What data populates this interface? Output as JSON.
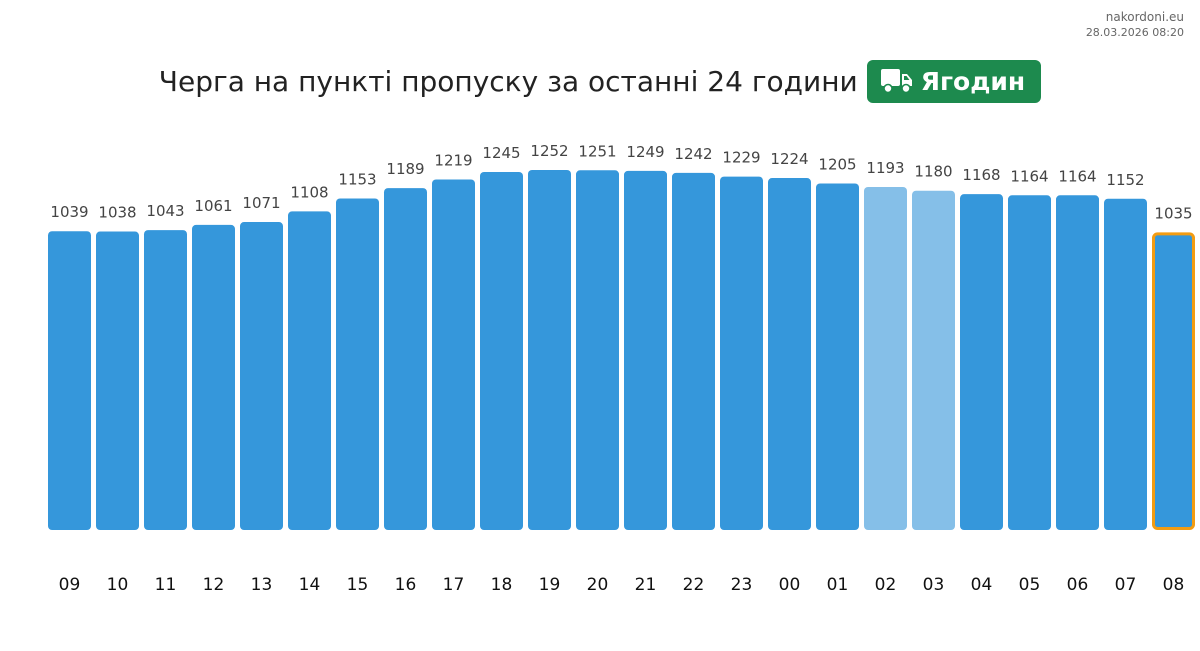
{
  "source": {
    "site": "nakordoni.eu",
    "timestamp": "28.03.2026 08:20"
  },
  "header": {
    "title": "Черга на пункті пропуску за останні 24 години",
    "checkpoint": "Ягодин",
    "badge_icon": "truck-icon",
    "badge_color": "#1d8a4e"
  },
  "chart_data": {
    "type": "bar",
    "categories": [
      "09",
      "10",
      "11",
      "12",
      "13",
      "14",
      "15",
      "16",
      "17",
      "18",
      "19",
      "20",
      "21",
      "22",
      "23",
      "00",
      "01",
      "02",
      "03",
      "04",
      "05",
      "06",
      "07",
      "08"
    ],
    "values": [
      1039,
      1038,
      1043,
      1061,
      1071,
      1108,
      1153,
      1189,
      1219,
      1245,
      1252,
      1251,
      1249,
      1242,
      1229,
      1224,
      1205,
      1193,
      1180,
      1168,
      1164,
      1164,
      1152,
      1035
    ],
    "ylim": [
      0,
      1252
    ],
    "grid": false,
    "legend": "none",
    "colors": {
      "default": "#3597db",
      "light": "#85bfe8",
      "current_outline": "#f39c12"
    },
    "light_categories": [
      "02",
      "03"
    ],
    "highlight_category": "08"
  }
}
